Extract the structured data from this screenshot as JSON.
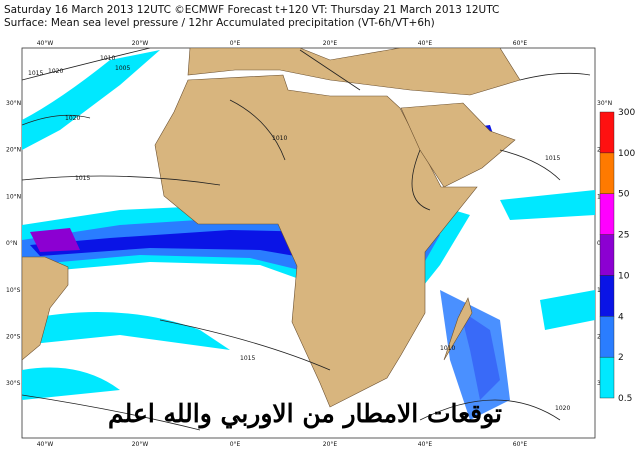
{
  "header": {
    "line1": "Saturday 16 March 2013 12UTC ©ECMWF Forecast t+120 VT: Thursday 21 March 2013 12UTC",
    "line2": "Surface: Mean sea level pressure / 12hr Accumulated precipitation (VT-6h/VT+6h)"
  },
  "map": {
    "lon_labels": [
      "40°W",
      "20°W",
      "0°E",
      "20°E",
      "40°E",
      "60°E"
    ],
    "lat_labels": [
      "30°N",
      "20°N",
      "10°N",
      "0°N",
      "10°S",
      "20°S",
      "30°S"
    ],
    "isobar_labels": [
      "1020",
      "1015",
      "1010",
      "1005",
      "1020",
      "1015",
      "1010",
      "1015",
      "1010",
      "1015",
      "1020"
    ],
    "overlay_text": "توقعات الامطار من الاوربي والله اعلم"
  },
  "colorbar": {
    "levels": [
      "0.5",
      "2",
      "4",
      "10",
      "25",
      "50",
      "100",
      "300"
    ],
    "colors": [
      "#00e8ff",
      "#2a7dff",
      "#0a14e6",
      "#8c00d2",
      "#ff00ff",
      "#ff7a00",
      "#ff1010"
    ]
  }
}
